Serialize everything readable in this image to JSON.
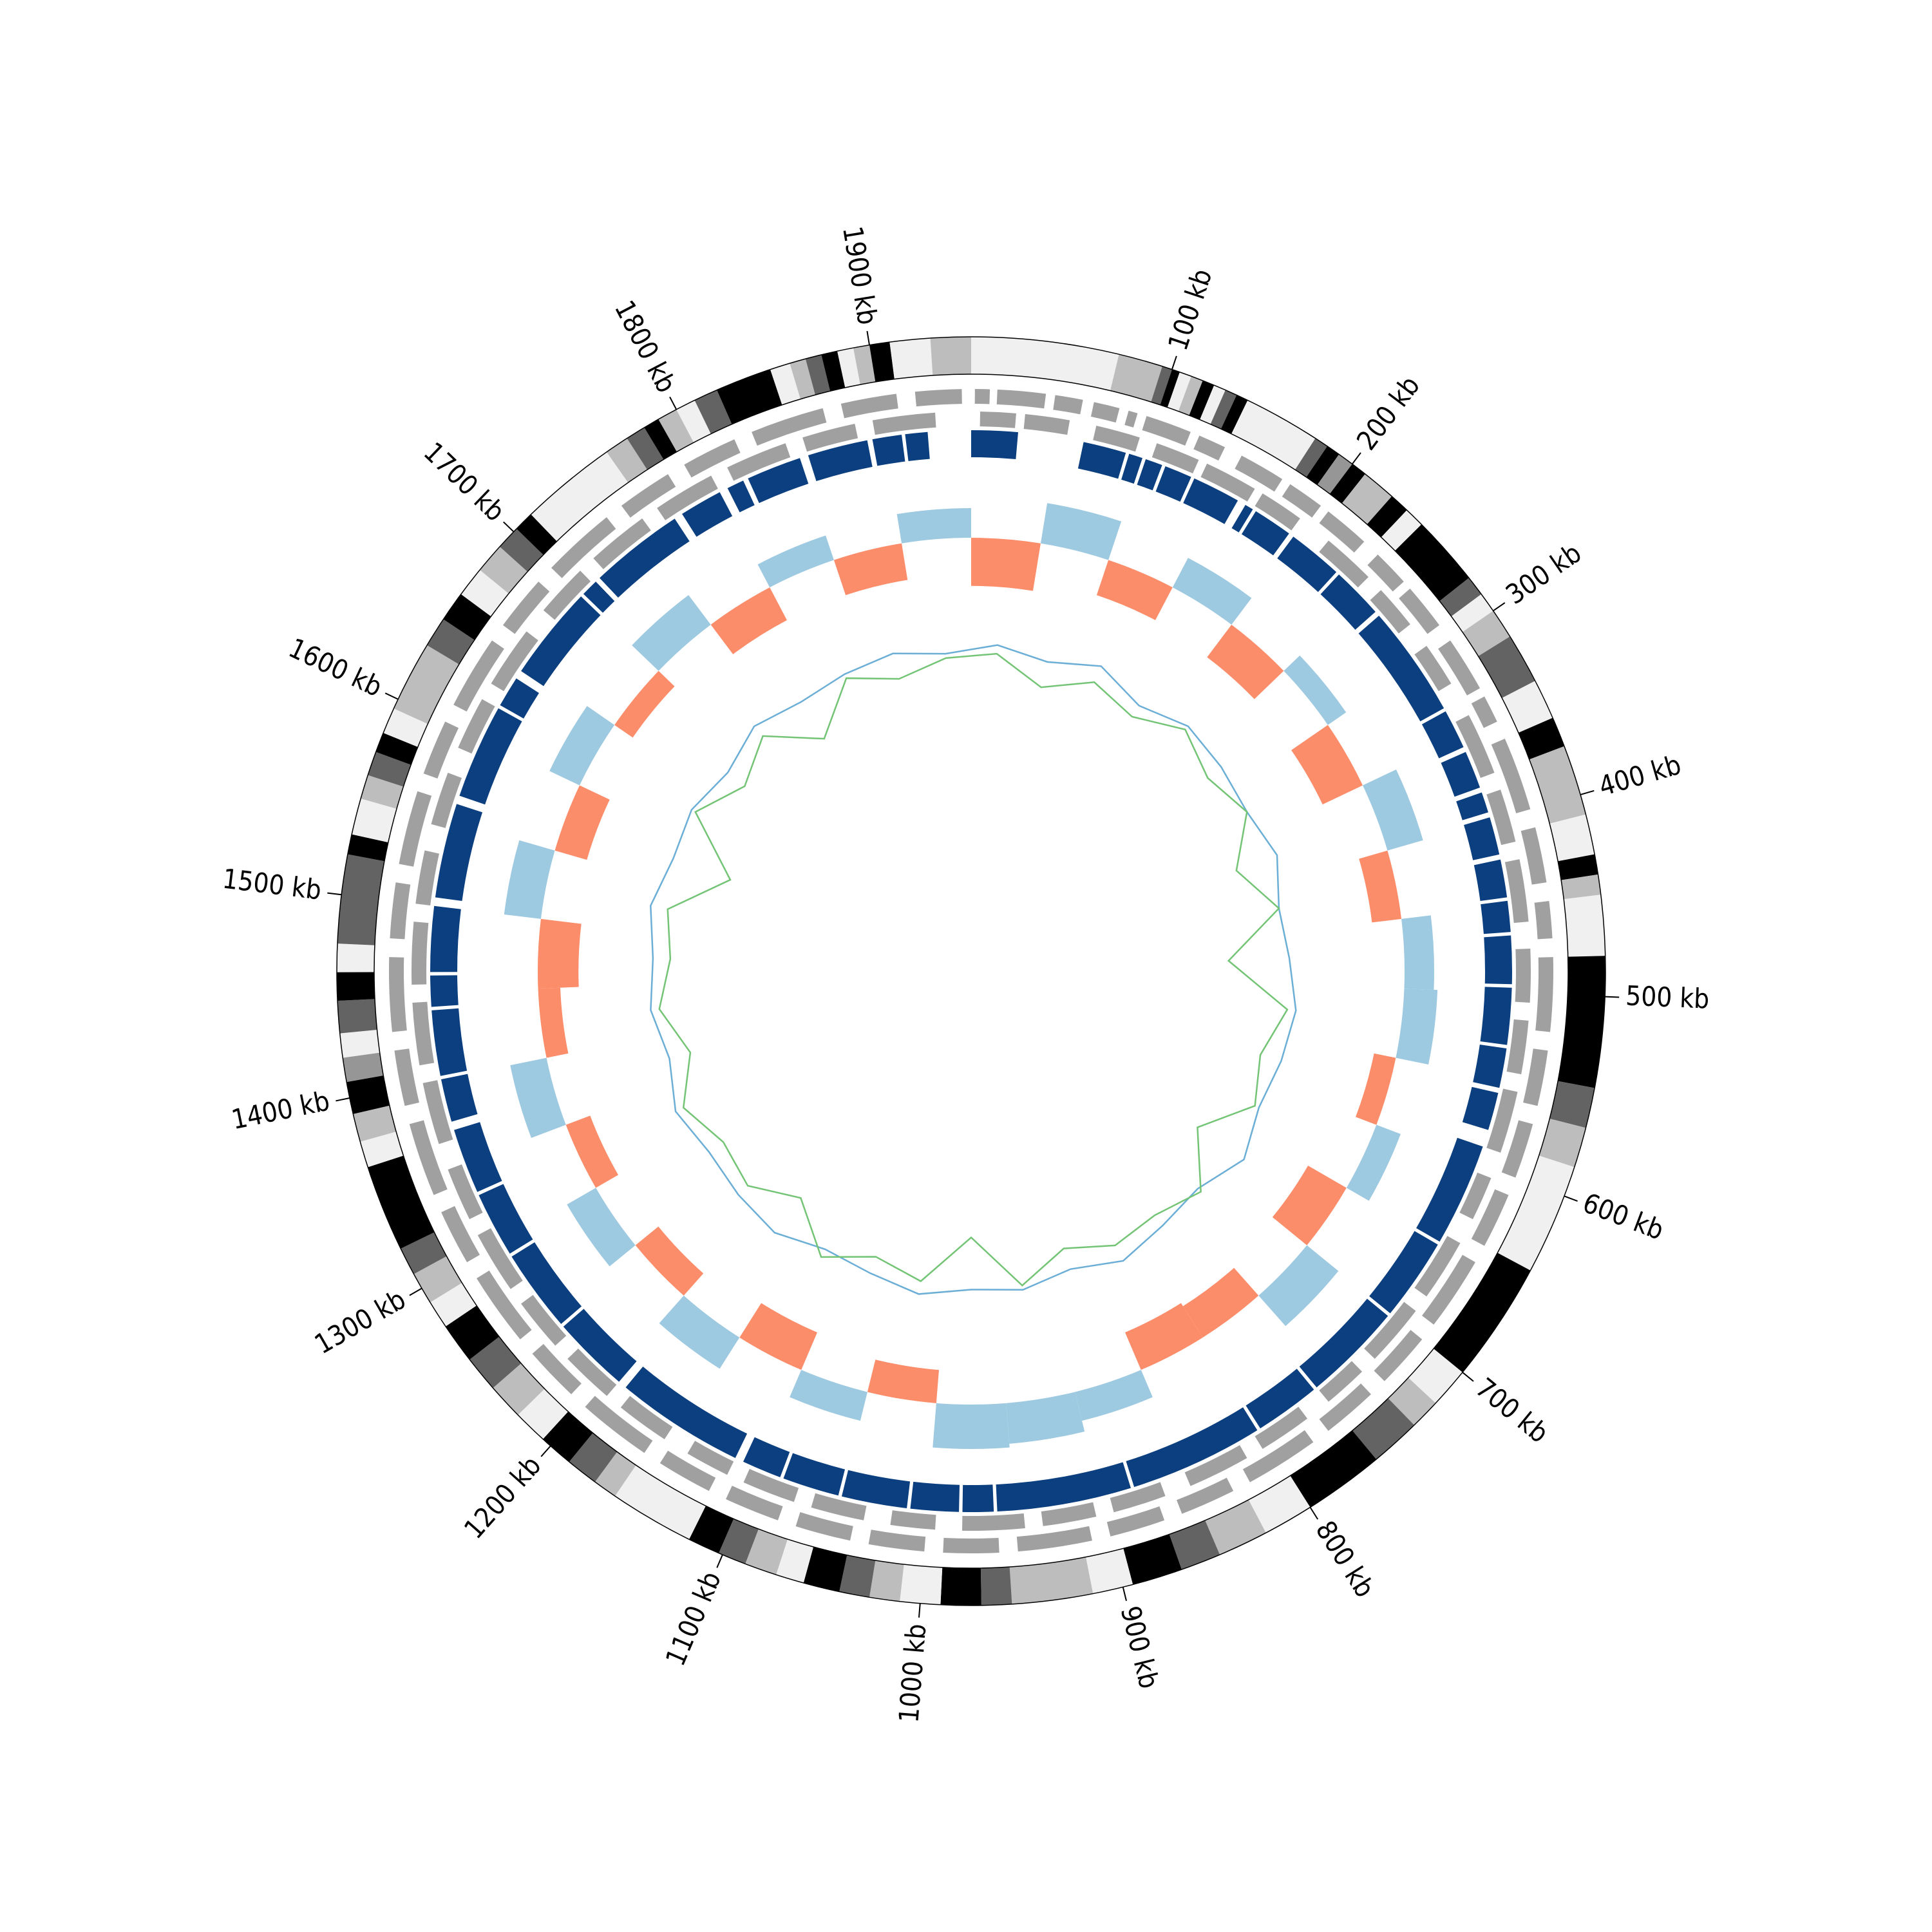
{
  "chart_data": {
    "type": "circos",
    "xlim": [
      0,
      1950
    ],
    "xticks": [
      {
        "value": 100,
        "label": "100 kb"
      },
      {
        "value": 200,
        "label": "200 kb"
      },
      {
        "value": 300,
        "label": "300 kb"
      },
      {
        "value": 400,
        "label": "400 kb"
      },
      {
        "value": 500,
        "label": "500 kb"
      },
      {
        "value": 600,
        "label": "600 kb"
      },
      {
        "value": 700,
        "label": "700 kb"
      },
      {
        "value": 800,
        "label": "800 kb"
      },
      {
        "value": 900,
        "label": "900 kb"
      },
      {
        "value": 1000,
        "label": "1000 kb"
      },
      {
        "value": 1100,
        "label": "1100 kb"
      },
      {
        "value": 1200,
        "label": "1200 kb"
      },
      {
        "value": 1300,
        "label": "1300 kb"
      },
      {
        "value": 1400,
        "label": "1400 kb"
      },
      {
        "value": 1500,
        "label": "1500 kb"
      },
      {
        "value": 1600,
        "label": "1600 kb"
      },
      {
        "value": 1700,
        "label": "1700 kb"
      },
      {
        "value": 1800,
        "label": "1800 kb"
      },
      {
        "value": 1900,
        "label": "1900 kb"
      }
    ],
    "bands": {
      "edges": [
        0,
        73,
        95,
        100,
        104,
        110,
        116,
        122,
        128,
        134,
        140,
        178,
        185,
        192,
        200,
        208,
        225,
        235,
        245,
        280,
        290,
        300,
        315,
        340,
        360,
        375,
        410,
        430,
        440,
        450,
        480,
        545,
        565,
        585,
        640,
        700,
        720,
        735,
        760,
        800,
        825,
        850,
        870,
        895,
        915,
        955,
        970,
        990,
        1010,
        1025,
        1040,
        1058,
        1072,
        1088,
        1102,
        1118,
        1160,
        1172,
        1188,
        1205,
        1222,
        1240,
        1258,
        1278,
        1292,
        1308,
        1322,
        1365,
        1378,
        1392,
        1408,
        1420,
        1432,
        1448,
        1462,
        1476,
        1520,
        1530,
        1548,
        1560,
        1572,
        1582,
        1595,
        1630,
        1645,
        1660,
        1675,
        1690,
        1702,
        1712,
        1760,
        1772,
        1782,
        1790,
        1800,
        1810,
        1822,
        1850,
        1860,
        1868,
        1876,
        1884,
        1892,
        1900,
        1910,
        1930,
        1950
      ],
      "colors": [
        "#f0f0f0",
        "#bdbdbd",
        "#636363",
        "#000000",
        "#f0f0f0",
        "#bdbdbd",
        "#000000",
        "#f0f0f0",
        "#636363",
        "#000000",
        "#f0f0f0",
        "#636363",
        "#000000",
        "#969696",
        "#000000",
        "#bdbdbd",
        "#000000",
        "#f0f0f0",
        "#000000",
        "#636363",
        "#f0f0f0",
        "#bdbdbd",
        "#636363",
        "#f0f0f0",
        "#000000",
        "#bdbdbd",
        "#f0f0f0",
        "#000000",
        "#bdbdbd",
        "#f0f0f0",
        "#000000",
        "#636363",
        "#bdbdbd",
        "#f0f0f0",
        "#000000",
        "#f0f0f0",
        "#bdbdbd",
        "#636363",
        "#000000",
        "#f0f0f0",
        "#bdbdbd",
        "#636363",
        "#000000",
        "#f0f0f0",
        "#bdbdbd",
        "#636363",
        "#000000",
        "#f0f0f0",
        "#bdbdbd",
        "#636363",
        "#000000",
        "#f0f0f0",
        "#bdbdbd",
        "#636363",
        "#000000",
        "#f0f0f0",
        "#bdbdbd",
        "#636363",
        "#000000",
        "#f0f0f0",
        "#bdbdbd",
        "#636363",
        "#000000",
        "#f0f0f0",
        "#bdbdbd",
        "#636363",
        "#000000",
        "#f0f0f0",
        "#bdbdbd",
        "#000000",
        "#969696",
        "#f0f0f0",
        "#636363",
        "#000000",
        "#f0f0f0",
        "#636363",
        "#000000",
        "#f0f0f0",
        "#bdbdbd",
        "#636363",
        "#000000",
        "#f0f0f0",
        "#bdbdbd",
        "#636363",
        "#000000",
        "#f0f0f0",
        "#bdbdbd",
        "#636363",
        "#000000",
        "#f0f0f0",
        "#bdbdbd",
        "#636363",
        "#000000",
        "#bdbdbd",
        "#f0f0f0",
        "#636363",
        "#000000",
        "#f0f0f0",
        "#bdbdbd",
        "#636363",
        "#000000",
        "#f0f0f0",
        "#bdbdbd",
        "#000000",
        "#f0f0f0",
        "#bdbdbd"
      ]
    },
    "genes_plus": {
      "color": "#a0a0a0",
      "features": [
        [
          2,
          10
        ],
        [
          14,
          40
        ],
        [
          45,
          60
        ],
        [
          66,
          80
        ],
        [
          85,
          90
        ],
        [
          95,
          120
        ],
        [
          125,
          140
        ],
        [
          150,
          175
        ],
        [
          180,
          200
        ],
        [
          205,
          230
        ],
        [
          240,
          260
        ],
        [
          265,
          290
        ],
        [
          300,
          330
        ],
        [
          335,
          350
        ],
        [
          360,
          400
        ],
        [
          410,
          440
        ],
        [
          450,
          470
        ],
        [
          480,
          520
        ],
        [
          530,
          560
        ],
        [
          570,
          600
        ],
        [
          610,
          640
        ],
        [
          650,
          690
        ],
        [
          700,
          730
        ],
        [
          740,
          770
        ],
        [
          780,
          820
        ],
        [
          830,
          860
        ],
        [
          870,
          900
        ],
        [
          910,
          950
        ],
        [
          960,
          990
        ],
        [
          1000,
          1030
        ],
        [
          1040,
          1070
        ],
        [
          1080,
          1110
        ],
        [
          1120,
          1150
        ],
        [
          1160,
          1200
        ],
        [
          1210,
          1240
        ],
        [
          1250,
          1290
        ],
        [
          1300,
          1330
        ],
        [
          1340,
          1380
        ],
        [
          1390,
          1420
        ],
        [
          1430,
          1470
        ],
        [
          1480,
          1510
        ],
        [
          1520,
          1560
        ],
        [
          1570,
          1600
        ],
        [
          1610,
          1650
        ],
        [
          1660,
          1690
        ],
        [
          1700,
          1740
        ],
        [
          1750,
          1780
        ],
        [
          1790,
          1820
        ],
        [
          1830,
          1870
        ],
        [
          1880,
          1910
        ],
        [
          1920,
          1945
        ]
      ]
    },
    "genes_minus": {
      "color": "#a0a0a0",
      "features": [
        [
          5,
          25
        ],
        [
          30,
          55
        ],
        [
          70,
          95
        ],
        [
          105,
          130
        ],
        [
          135,
          165
        ],
        [
          170,
          195
        ],
        [
          215,
          245
        ],
        [
          255,
          280
        ],
        [
          295,
          320
        ],
        [
          340,
          375
        ],
        [
          385,
          415
        ],
        [
          425,
          460
        ],
        [
          475,
          505
        ],
        [
          515,
          545
        ],
        [
          555,
          590
        ],
        [
          605,
          630
        ],
        [
          645,
          680
        ],
        [
          690,
          725
        ],
        [
          735,
          760
        ],
        [
          775,
          805
        ],
        [
          815,
          850
        ],
        [
          865,
          895
        ],
        [
          905,
          935
        ],
        [
          945,
          980
        ],
        [
          995,
          1020
        ],
        [
          1035,
          1065
        ],
        [
          1075,
          1105
        ],
        [
          1115,
          1140
        ],
        [
          1155,
          1185
        ],
        [
          1195,
          1225
        ],
        [
          1235,
          1265
        ],
        [
          1275,
          1310
        ],
        [
          1320,
          1350
        ],
        [
          1365,
          1400
        ],
        [
          1410,
          1445
        ],
        [
          1455,
          1490
        ],
        [
          1500,
          1530
        ],
        [
          1545,
          1575
        ],
        [
          1590,
          1620
        ],
        [
          1630,
          1665
        ],
        [
          1680,
          1710
        ],
        [
          1720,
          1755
        ],
        [
          1765,
          1800
        ],
        [
          1810,
          1845
        ],
        [
          1855,
          1885
        ],
        [
          1895,
          1930
        ]
      ]
    },
    "blocks": {
      "color": "#0b3f7f",
      "features": [
        [
          0,
          27
        ],
        [
          65,
          90
        ],
        [
          92,
          100
        ],
        [
          102,
          112
        ],
        [
          114,
          130
        ],
        [
          132,
          160
        ],
        [
          165,
          170
        ],
        [
          172,
          195
        ],
        [
          198,
          230
        ],
        [
          232,
          262
        ],
        [
          265,
          330
        ],
        [
          332,
          355
        ],
        [
          358,
          380
        ],
        [
          383,
          395
        ],
        [
          398,
          420
        ],
        [
          423,
          445
        ],
        [
          447,
          465
        ],
        [
          467,
          495
        ],
        [
          497,
          530
        ],
        [
          532,
          555
        ],
        [
          558,
          580
        ],
        [
          590,
          650
        ],
        [
          652,
          700
        ],
        [
          702,
          760
        ],
        [
          762,
          800
        ],
        [
          802,
          880
        ],
        [
          882,
          960
        ],
        [
          962,
          980
        ],
        [
          982,
          1010
        ],
        [
          1012,
          1050
        ],
        [
          1052,
          1085
        ],
        [
          1087,
          1110
        ],
        [
          1115,
          1190
        ],
        [
          1195,
          1240
        ],
        [
          1242,
          1290
        ],
        [
          1292,
          1330
        ],
        [
          1332,
          1370
        ],
        [
          1375,
          1400
        ],
        [
          1402,
          1440
        ],
        [
          1442,
          1460
        ],
        [
          1462,
          1500
        ],
        [
          1505,
          1560
        ],
        [
          1565,
          1620
        ],
        [
          1622,
          1640
        ],
        [
          1645,
          1700
        ],
        [
          1702,
          1712
        ],
        [
          1715,
          1770
        ],
        [
          1775,
          1800
        ],
        [
          1805,
          1815
        ],
        [
          1818,
          1850
        ],
        [
          1855,
          1890
        ],
        [
          1893,
          1910
        ],
        [
          1912,
          1925
        ]
      ]
    },
    "histogram": {
      "bins": [
        0,
        50,
        100,
        150,
        200,
        250,
        300,
        350,
        400,
        450,
        500,
        550,
        600,
        650,
        700,
        750,
        800,
        850,
        900,
        950,
        1000,
        1050,
        1100,
        1150,
        1200,
        1250,
        1300,
        1350,
        1400,
        1450,
        1500,
        1550,
        1600,
        1650,
        1700,
        1750,
        1800,
        1850,
        1900,
        1950
      ],
      "values": [
        -0.65,
        0.55,
        -0.5,
        0.45,
        -0.55,
        0.3,
        -0.6,
        0.5,
        -0.4,
        0.4,
        0.45,
        -0.3,
        0.35,
        -0.6,
        0.55,
        -0.5,
        -0.55,
        0.4,
        0.55,
        0.6,
        -0.45,
        0.4,
        -0.55,
        0.5,
        -0.4,
        0.45,
        -0.35,
        0.5,
        -0.3,
        -0.55,
        0.5,
        -0.45,
        0.45,
        -0.3,
        0.5,
        -0.5,
        0.35,
        -0.5,
        0.4
      ],
      "positive_color": "#9ecae1",
      "negative_color": "#fc8d6a",
      "ylim": [
        -1,
        1
      ]
    },
    "lines": {
      "x": [
        25,
        75,
        125,
        175,
        225,
        275,
        325,
        375,
        425,
        475,
        525,
        575,
        625,
        675,
        725,
        775,
        825,
        875,
        925,
        975,
        1025,
        1075,
        1125,
        1175,
        1225,
        1275,
        1325,
        1375,
        1425,
        1475,
        1525,
        1575,
        1625,
        1675,
        1725,
        1775,
        1825,
        1875,
        1925
      ],
      "ylim": [
        -1,
        1
      ],
      "series": [
        {
          "color": "#6baed6",
          "values": [
            0.2,
            0.1,
            0.25,
            0.05,
            0.2,
            0.15,
            0.1,
            0.2,
            0.05,
            0.1,
            0.2,
            0.15,
            0.1,
            0.25,
            0.05,
            0.1,
            0.2,
            0.05,
            0.15,
            0.1,
            0.2,
            0.1,
            0.05,
            0.2,
            0.15,
            0.1,
            0.2,
            0.05,
            0.15,
            0.1,
            0.2,
            0.1,
            0.15,
            0.05,
            0.2,
            0.1,
            0.15,
            0.2,
            0.1
          ]
        },
        {
          "color": "#74c476",
          "values": [
            0.1,
            -0.2,
            0.05,
            -0.1,
            0.15,
            -0.05,
            0.1,
            -0.3,
            0.05,
            -0.6,
            0.1,
            -0.1,
            0.05,
            -0.4,
            0.1,
            -0.05,
            0.0,
            -0.2,
            0.1,
            -0.5,
            0.05,
            -0.1,
            0.15,
            -0.3,
            0.0,
            -0.1,
            0.1,
            -0.2,
            0.05,
            -0.1,
            0.0,
            -0.6,
            0.1,
            -0.2,
            0.05,
            -0.4,
            0.1,
            -0.1,
            0.05
          ]
        }
      ]
    }
  }
}
